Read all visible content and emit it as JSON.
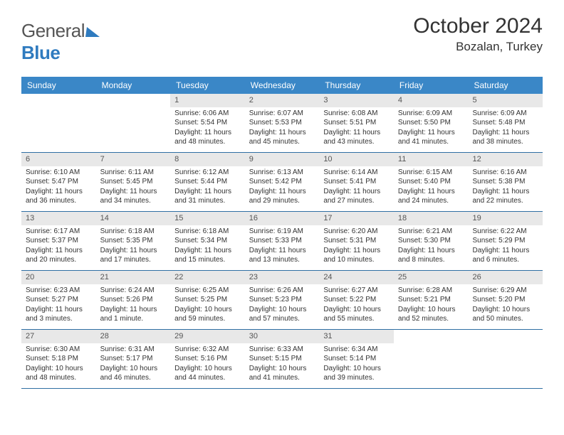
{
  "brand": {
    "part1": "General",
    "part2": "Blue"
  },
  "title": "October 2024",
  "location": "Bozalan, Turkey",
  "colors": {
    "header_bg": "#3a87c7",
    "daynum_bg": "#e8e8e8",
    "week_border": "#2f6fa3",
    "text": "#333333",
    "logo_blue": "#2f7bbf"
  },
  "dow": [
    "Sunday",
    "Monday",
    "Tuesday",
    "Wednesday",
    "Thursday",
    "Friday",
    "Saturday"
  ],
  "weeks": [
    [
      null,
      null,
      {
        "n": "1",
        "sr": "Sunrise: 6:06 AM",
        "ss": "Sunset: 5:54 PM",
        "dl": "Daylight: 11 hours and 48 minutes."
      },
      {
        "n": "2",
        "sr": "Sunrise: 6:07 AM",
        "ss": "Sunset: 5:53 PM",
        "dl": "Daylight: 11 hours and 45 minutes."
      },
      {
        "n": "3",
        "sr": "Sunrise: 6:08 AM",
        "ss": "Sunset: 5:51 PM",
        "dl": "Daylight: 11 hours and 43 minutes."
      },
      {
        "n": "4",
        "sr": "Sunrise: 6:09 AM",
        "ss": "Sunset: 5:50 PM",
        "dl": "Daylight: 11 hours and 41 minutes."
      },
      {
        "n": "5",
        "sr": "Sunrise: 6:09 AM",
        "ss": "Sunset: 5:48 PM",
        "dl": "Daylight: 11 hours and 38 minutes."
      }
    ],
    [
      {
        "n": "6",
        "sr": "Sunrise: 6:10 AM",
        "ss": "Sunset: 5:47 PM",
        "dl": "Daylight: 11 hours and 36 minutes."
      },
      {
        "n": "7",
        "sr": "Sunrise: 6:11 AM",
        "ss": "Sunset: 5:45 PM",
        "dl": "Daylight: 11 hours and 34 minutes."
      },
      {
        "n": "8",
        "sr": "Sunrise: 6:12 AM",
        "ss": "Sunset: 5:44 PM",
        "dl": "Daylight: 11 hours and 31 minutes."
      },
      {
        "n": "9",
        "sr": "Sunrise: 6:13 AM",
        "ss": "Sunset: 5:42 PM",
        "dl": "Daylight: 11 hours and 29 minutes."
      },
      {
        "n": "10",
        "sr": "Sunrise: 6:14 AM",
        "ss": "Sunset: 5:41 PM",
        "dl": "Daylight: 11 hours and 27 minutes."
      },
      {
        "n": "11",
        "sr": "Sunrise: 6:15 AM",
        "ss": "Sunset: 5:40 PM",
        "dl": "Daylight: 11 hours and 24 minutes."
      },
      {
        "n": "12",
        "sr": "Sunrise: 6:16 AM",
        "ss": "Sunset: 5:38 PM",
        "dl": "Daylight: 11 hours and 22 minutes."
      }
    ],
    [
      {
        "n": "13",
        "sr": "Sunrise: 6:17 AM",
        "ss": "Sunset: 5:37 PM",
        "dl": "Daylight: 11 hours and 20 minutes."
      },
      {
        "n": "14",
        "sr": "Sunrise: 6:18 AM",
        "ss": "Sunset: 5:35 PM",
        "dl": "Daylight: 11 hours and 17 minutes."
      },
      {
        "n": "15",
        "sr": "Sunrise: 6:18 AM",
        "ss": "Sunset: 5:34 PM",
        "dl": "Daylight: 11 hours and 15 minutes."
      },
      {
        "n": "16",
        "sr": "Sunrise: 6:19 AM",
        "ss": "Sunset: 5:33 PM",
        "dl": "Daylight: 11 hours and 13 minutes."
      },
      {
        "n": "17",
        "sr": "Sunrise: 6:20 AM",
        "ss": "Sunset: 5:31 PM",
        "dl": "Daylight: 11 hours and 10 minutes."
      },
      {
        "n": "18",
        "sr": "Sunrise: 6:21 AM",
        "ss": "Sunset: 5:30 PM",
        "dl": "Daylight: 11 hours and 8 minutes."
      },
      {
        "n": "19",
        "sr": "Sunrise: 6:22 AM",
        "ss": "Sunset: 5:29 PM",
        "dl": "Daylight: 11 hours and 6 minutes."
      }
    ],
    [
      {
        "n": "20",
        "sr": "Sunrise: 6:23 AM",
        "ss": "Sunset: 5:27 PM",
        "dl": "Daylight: 11 hours and 3 minutes."
      },
      {
        "n": "21",
        "sr": "Sunrise: 6:24 AM",
        "ss": "Sunset: 5:26 PM",
        "dl": "Daylight: 11 hours and 1 minute."
      },
      {
        "n": "22",
        "sr": "Sunrise: 6:25 AM",
        "ss": "Sunset: 5:25 PM",
        "dl": "Daylight: 10 hours and 59 minutes."
      },
      {
        "n": "23",
        "sr": "Sunrise: 6:26 AM",
        "ss": "Sunset: 5:23 PM",
        "dl": "Daylight: 10 hours and 57 minutes."
      },
      {
        "n": "24",
        "sr": "Sunrise: 6:27 AM",
        "ss": "Sunset: 5:22 PM",
        "dl": "Daylight: 10 hours and 55 minutes."
      },
      {
        "n": "25",
        "sr": "Sunrise: 6:28 AM",
        "ss": "Sunset: 5:21 PM",
        "dl": "Daylight: 10 hours and 52 minutes."
      },
      {
        "n": "26",
        "sr": "Sunrise: 6:29 AM",
        "ss": "Sunset: 5:20 PM",
        "dl": "Daylight: 10 hours and 50 minutes."
      }
    ],
    [
      {
        "n": "27",
        "sr": "Sunrise: 6:30 AM",
        "ss": "Sunset: 5:18 PM",
        "dl": "Daylight: 10 hours and 48 minutes."
      },
      {
        "n": "28",
        "sr": "Sunrise: 6:31 AM",
        "ss": "Sunset: 5:17 PM",
        "dl": "Daylight: 10 hours and 46 minutes."
      },
      {
        "n": "29",
        "sr": "Sunrise: 6:32 AM",
        "ss": "Sunset: 5:16 PM",
        "dl": "Daylight: 10 hours and 44 minutes."
      },
      {
        "n": "30",
        "sr": "Sunrise: 6:33 AM",
        "ss": "Sunset: 5:15 PM",
        "dl": "Daylight: 10 hours and 41 minutes."
      },
      {
        "n": "31",
        "sr": "Sunrise: 6:34 AM",
        "ss": "Sunset: 5:14 PM",
        "dl": "Daylight: 10 hours and 39 minutes."
      },
      null,
      null
    ]
  ]
}
